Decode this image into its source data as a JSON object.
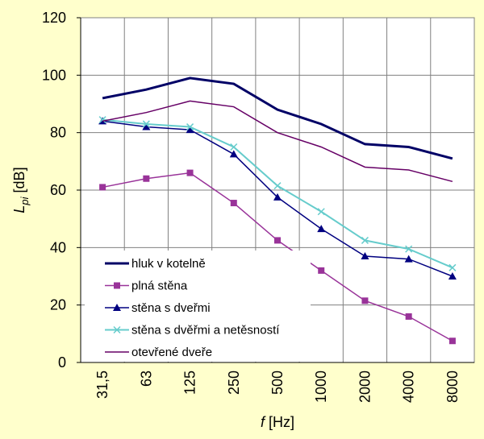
{
  "chart_data": {
    "type": "line",
    "y_label_main": "L",
    "y_label_sub": "pi",
    "y_label_unit": "[dB]",
    "x_label_main": "f",
    "x_label_unit": "[Hz]",
    "categories": [
      "31,5",
      "63",
      "125",
      "250",
      "500",
      "1000",
      "2000",
      "4000",
      "8000"
    ],
    "series": [
      {
        "name": "hluk v kotelně",
        "color": "#000066",
        "marker": "none",
        "line_width": 3,
        "values": [
          92,
          95,
          99,
          97,
          88,
          83,
          76,
          75,
          71
        ]
      },
      {
        "name": "plná stěna",
        "color": "#993399",
        "marker": "square",
        "line_width": 1.5,
        "values": [
          61,
          64,
          66,
          55.5,
          42.5,
          32,
          21.5,
          16,
          7.5
        ]
      },
      {
        "name": "stěna s dveřmi",
        "color": "#000080",
        "marker": "triangle",
        "line_width": 1.5,
        "values": [
          84,
          82,
          81,
          72.5,
          57.5,
          46.5,
          37,
          36,
          30
        ]
      },
      {
        "name": "stěna s dvěřmi a netěsností",
        "color": "#66cccc",
        "marker": "x",
        "line_width": 2,
        "values": [
          84.5,
          83,
          82,
          75,
          61.5,
          52.5,
          42.5,
          39.5,
          33
        ]
      },
      {
        "name": "otevřené dveře",
        "color": "#660066",
        "marker": "none",
        "line_width": 1.5,
        "values": [
          84,
          87,
          91,
          89,
          80,
          75,
          68,
          67,
          63
        ]
      }
    ],
    "ylim": [
      0,
      120
    ],
    "yticks": [
      0,
      20,
      40,
      60,
      80,
      100,
      120
    ],
    "grid": true,
    "legend": "lower left"
  }
}
